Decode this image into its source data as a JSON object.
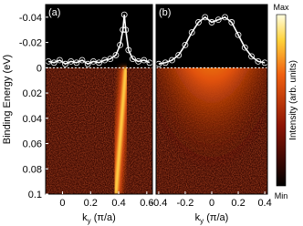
{
  "chart_data": [
    {
      "type": "heatmap",
      "label": "(a)",
      "ylabel": "Binding Energy (eV)",
      "xlabel": {
        "text": "k",
        "sub": "y",
        "unit": " (π/a)"
      },
      "xlim": [
        -0.12,
        0.64
      ],
      "xticks": [
        0,
        0.2,
        0.4,
        0.6
      ],
      "ylim": [
        0.1,
        -0.05
      ],
      "yticks": [
        -0.04,
        -0.02,
        0,
        0.02,
        0.04,
        0.06,
        0.08,
        0.1
      ],
      "dispersion": {
        "x": [
          0.38,
          0.45
        ],
        "y": [
          0.1,
          0
        ]
      },
      "mdc": {
        "x": [
          -0.1,
          -0.06,
          -0.02,
          0.02,
          0.06,
          0.1,
          0.14,
          0.18,
          0.22,
          0.26,
          0.3,
          0.34,
          0.38,
          0.41,
          0.43,
          0.44,
          0.45,
          0.47,
          0.5,
          0.54,
          0.58,
          0.62
        ],
        "values": [
          -0.005,
          -0.004,
          -0.006,
          -0.003,
          -0.005,
          -0.004,
          -0.006,
          -0.003,
          -0.005,
          -0.004,
          -0.006,
          -0.007,
          -0.01,
          -0.018,
          -0.03,
          -0.042,
          -0.03,
          -0.014,
          -0.007,
          -0.005,
          -0.006,
          -0.004
        ]
      }
    },
    {
      "type": "heatmap",
      "label": "(b)",
      "xlabel": {
        "text": "k",
        "sub": "y",
        "unit": " (π/a)"
      },
      "xlim": [
        -0.42,
        0.42
      ],
      "xticks": [
        -0.4,
        -0.2,
        0,
        0.2,
        0.4
      ],
      "ylim": [
        0.1,
        -0.05
      ],
      "mdc": {
        "x": [
          -0.4,
          -0.35,
          -0.3,
          -0.25,
          -0.2,
          -0.15,
          -0.1,
          -0.05,
          0,
          0.05,
          0.1,
          0.15,
          0.2,
          0.25,
          0.3,
          0.35,
          0.4
        ],
        "values": [
          -0.003,
          -0.004,
          -0.006,
          -0.01,
          -0.018,
          -0.028,
          -0.036,
          -0.04,
          -0.036,
          -0.038,
          -0.04,
          -0.036,
          -0.026,
          -0.016,
          -0.009,
          -0.005,
          -0.004
        ]
      }
    }
  ],
  "colorbar": {
    "label": "Intensity (arb. units)",
    "max": "Max",
    "min": "Min"
  }
}
